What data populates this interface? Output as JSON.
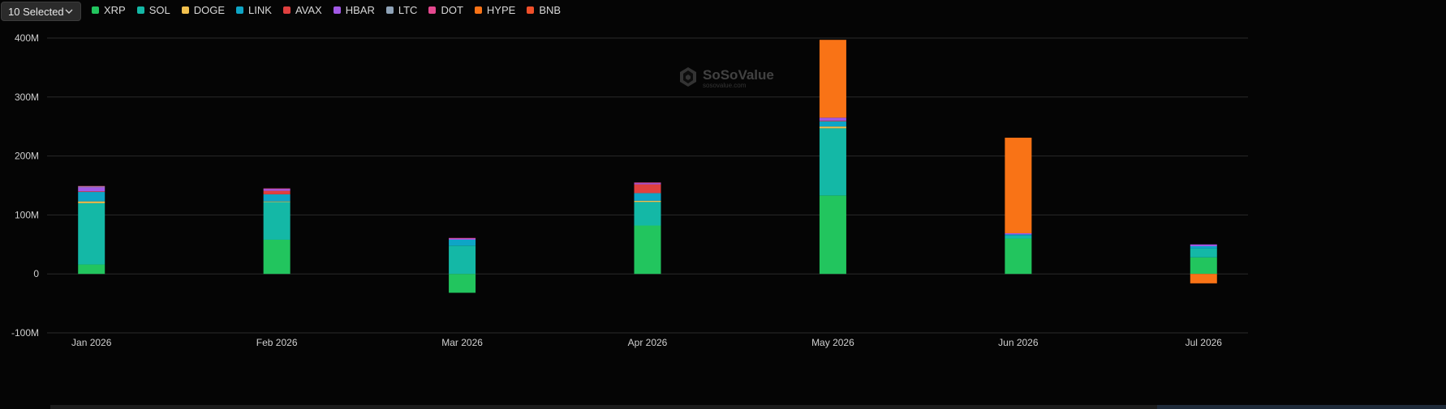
{
  "selector": {
    "label": "10 Selected",
    "icon": "chevron-down-icon"
  },
  "watermark": {
    "brand": "SoSoValue",
    "sub": "sosovalue.com",
    "icon": "cube-logo-icon"
  },
  "chart_data": {
    "type": "bar",
    "stacked": true,
    "categories": [
      "Jan 2026",
      "Feb 2026",
      "Mar 2026",
      "Apr 2026",
      "May 2026",
      "Jun 2026",
      "Jul 2026"
    ],
    "y_ticks": [
      "400M",
      "300M",
      "200M",
      "100M",
      "0",
      "-100M"
    ],
    "ylim": [
      -100,
      400
    ],
    "grid": true,
    "legend_position": "top-left",
    "series": [
      {
        "name": "XRP",
        "color": "#22c55e",
        "values": [
          16,
          58,
          -32,
          82,
          133,
          60,
          28
        ]
      },
      {
        "name": "SOL",
        "color": "#14b8a6",
        "values": [
          104,
          64,
          48,
          40,
          114,
          5,
          15
        ]
      },
      {
        "name": "DOGE",
        "color": "#f2c14e",
        "values": [
          3,
          1,
          0,
          2,
          3,
          0,
          0
        ]
      },
      {
        "name": "LINK",
        "color": "#0ea5c6",
        "values": [
          16,
          12,
          10,
          13,
          9,
          2,
          4
        ]
      },
      {
        "name": "AVAX",
        "color": "#e0403f",
        "values": [
          1,
          6,
          0,
          15,
          1,
          0,
          0
        ]
      },
      {
        "name": "HBAR",
        "color": "#a259e6",
        "values": [
          7,
          3,
          2,
          2,
          5,
          2,
          3
        ]
      },
      {
        "name": "LTC",
        "color": "#8fa3b8",
        "values": [
          1,
          0,
          0,
          0,
          0,
          0,
          0
        ]
      },
      {
        "name": "DOT",
        "color": "#e5488f",
        "values": [
          1,
          1,
          1,
          1,
          0,
          0,
          0
        ]
      },
      {
        "name": "HYPE",
        "color": "#f97316",
        "values": [
          0,
          0,
          0,
          0,
          132,
          162,
          -16
        ]
      },
      {
        "name": "BNB",
        "color": "#f0502a",
        "values": [
          0,
          0,
          0,
          0,
          0,
          0,
          0
        ]
      }
    ]
  }
}
